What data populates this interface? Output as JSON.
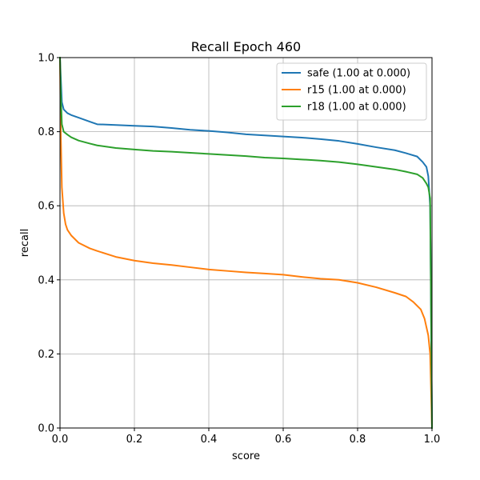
{
  "chart_data": {
    "type": "line",
    "title": "Recall Epoch 460",
    "xlabel": "score",
    "ylabel": "recall",
    "xlim": [
      0,
      1
    ],
    "ylim": [
      0,
      1
    ],
    "xticks": [
      "0.0",
      "0.2",
      "0.4",
      "0.6",
      "0.8",
      "1.0"
    ],
    "yticks": [
      "0.0",
      "0.2",
      "0.4",
      "0.6",
      "0.8",
      "1.0"
    ],
    "grid": true,
    "legend_position": "top-right",
    "series": [
      {
        "name": "safe (1.00 at 0.000)",
        "color": "#1f77b4",
        "x": [
          0,
          0.002,
          0.005,
          0.01,
          0.02,
          0.03,
          0.05,
          0.08,
          0.1,
          0.15,
          0.2,
          0.25,
          0.3,
          0.35,
          0.4,
          0.45,
          0.5,
          0.55,
          0.6,
          0.65,
          0.7,
          0.75,
          0.8,
          0.85,
          0.9,
          0.93,
          0.96,
          0.975,
          0.985,
          0.99,
          0.995,
          1.0
        ],
        "y": [
          1.0,
          0.95,
          0.88,
          0.86,
          0.85,
          0.845,
          0.838,
          0.827,
          0.82,
          0.818,
          0.816,
          0.814,
          0.81,
          0.805,
          0.802,
          0.798,
          0.793,
          0.79,
          0.787,
          0.784,
          0.78,
          0.775,
          0.767,
          0.758,
          0.75,
          0.742,
          0.733,
          0.718,
          0.705,
          0.68,
          0.6,
          0.0
        ]
      },
      {
        "name": "r15 (1.00 at 0.000)",
        "color": "#ff7f0e",
        "x": [
          0,
          0.002,
          0.005,
          0.01,
          0.015,
          0.02,
          0.03,
          0.05,
          0.08,
          0.1,
          0.15,
          0.2,
          0.25,
          0.3,
          0.35,
          0.4,
          0.45,
          0.5,
          0.55,
          0.6,
          0.65,
          0.7,
          0.75,
          0.8,
          0.85,
          0.9,
          0.93,
          0.95,
          0.97,
          0.98,
          0.99,
          0.995,
          1.0
        ],
        "y": [
          1.0,
          0.8,
          0.65,
          0.58,
          0.55,
          0.535,
          0.52,
          0.5,
          0.485,
          0.478,
          0.462,
          0.452,
          0.445,
          0.44,
          0.434,
          0.428,
          0.424,
          0.42,
          0.417,
          0.414,
          0.408,
          0.403,
          0.4,
          0.392,
          0.38,
          0.365,
          0.355,
          0.34,
          0.32,
          0.295,
          0.25,
          0.2,
          0.0
        ]
      },
      {
        "name": "r18 (1.00 at 0.000)",
        "color": "#2ca02c",
        "x": [
          0,
          0.002,
          0.005,
          0.01,
          0.02,
          0.03,
          0.05,
          0.08,
          0.1,
          0.15,
          0.2,
          0.25,
          0.3,
          0.35,
          0.4,
          0.45,
          0.5,
          0.55,
          0.6,
          0.65,
          0.7,
          0.75,
          0.8,
          0.85,
          0.9,
          0.93,
          0.96,
          0.975,
          0.985,
          0.99,
          0.995,
          1.0
        ],
        "y": [
          1.0,
          0.9,
          0.82,
          0.8,
          0.792,
          0.785,
          0.776,
          0.768,
          0.763,
          0.756,
          0.752,
          0.748,
          0.746,
          0.743,
          0.74,
          0.737,
          0.734,
          0.73,
          0.728,
          0.725,
          0.722,
          0.718,
          0.712,
          0.705,
          0.698,
          0.692,
          0.685,
          0.675,
          0.66,
          0.65,
          0.62,
          0.0
        ]
      }
    ]
  }
}
